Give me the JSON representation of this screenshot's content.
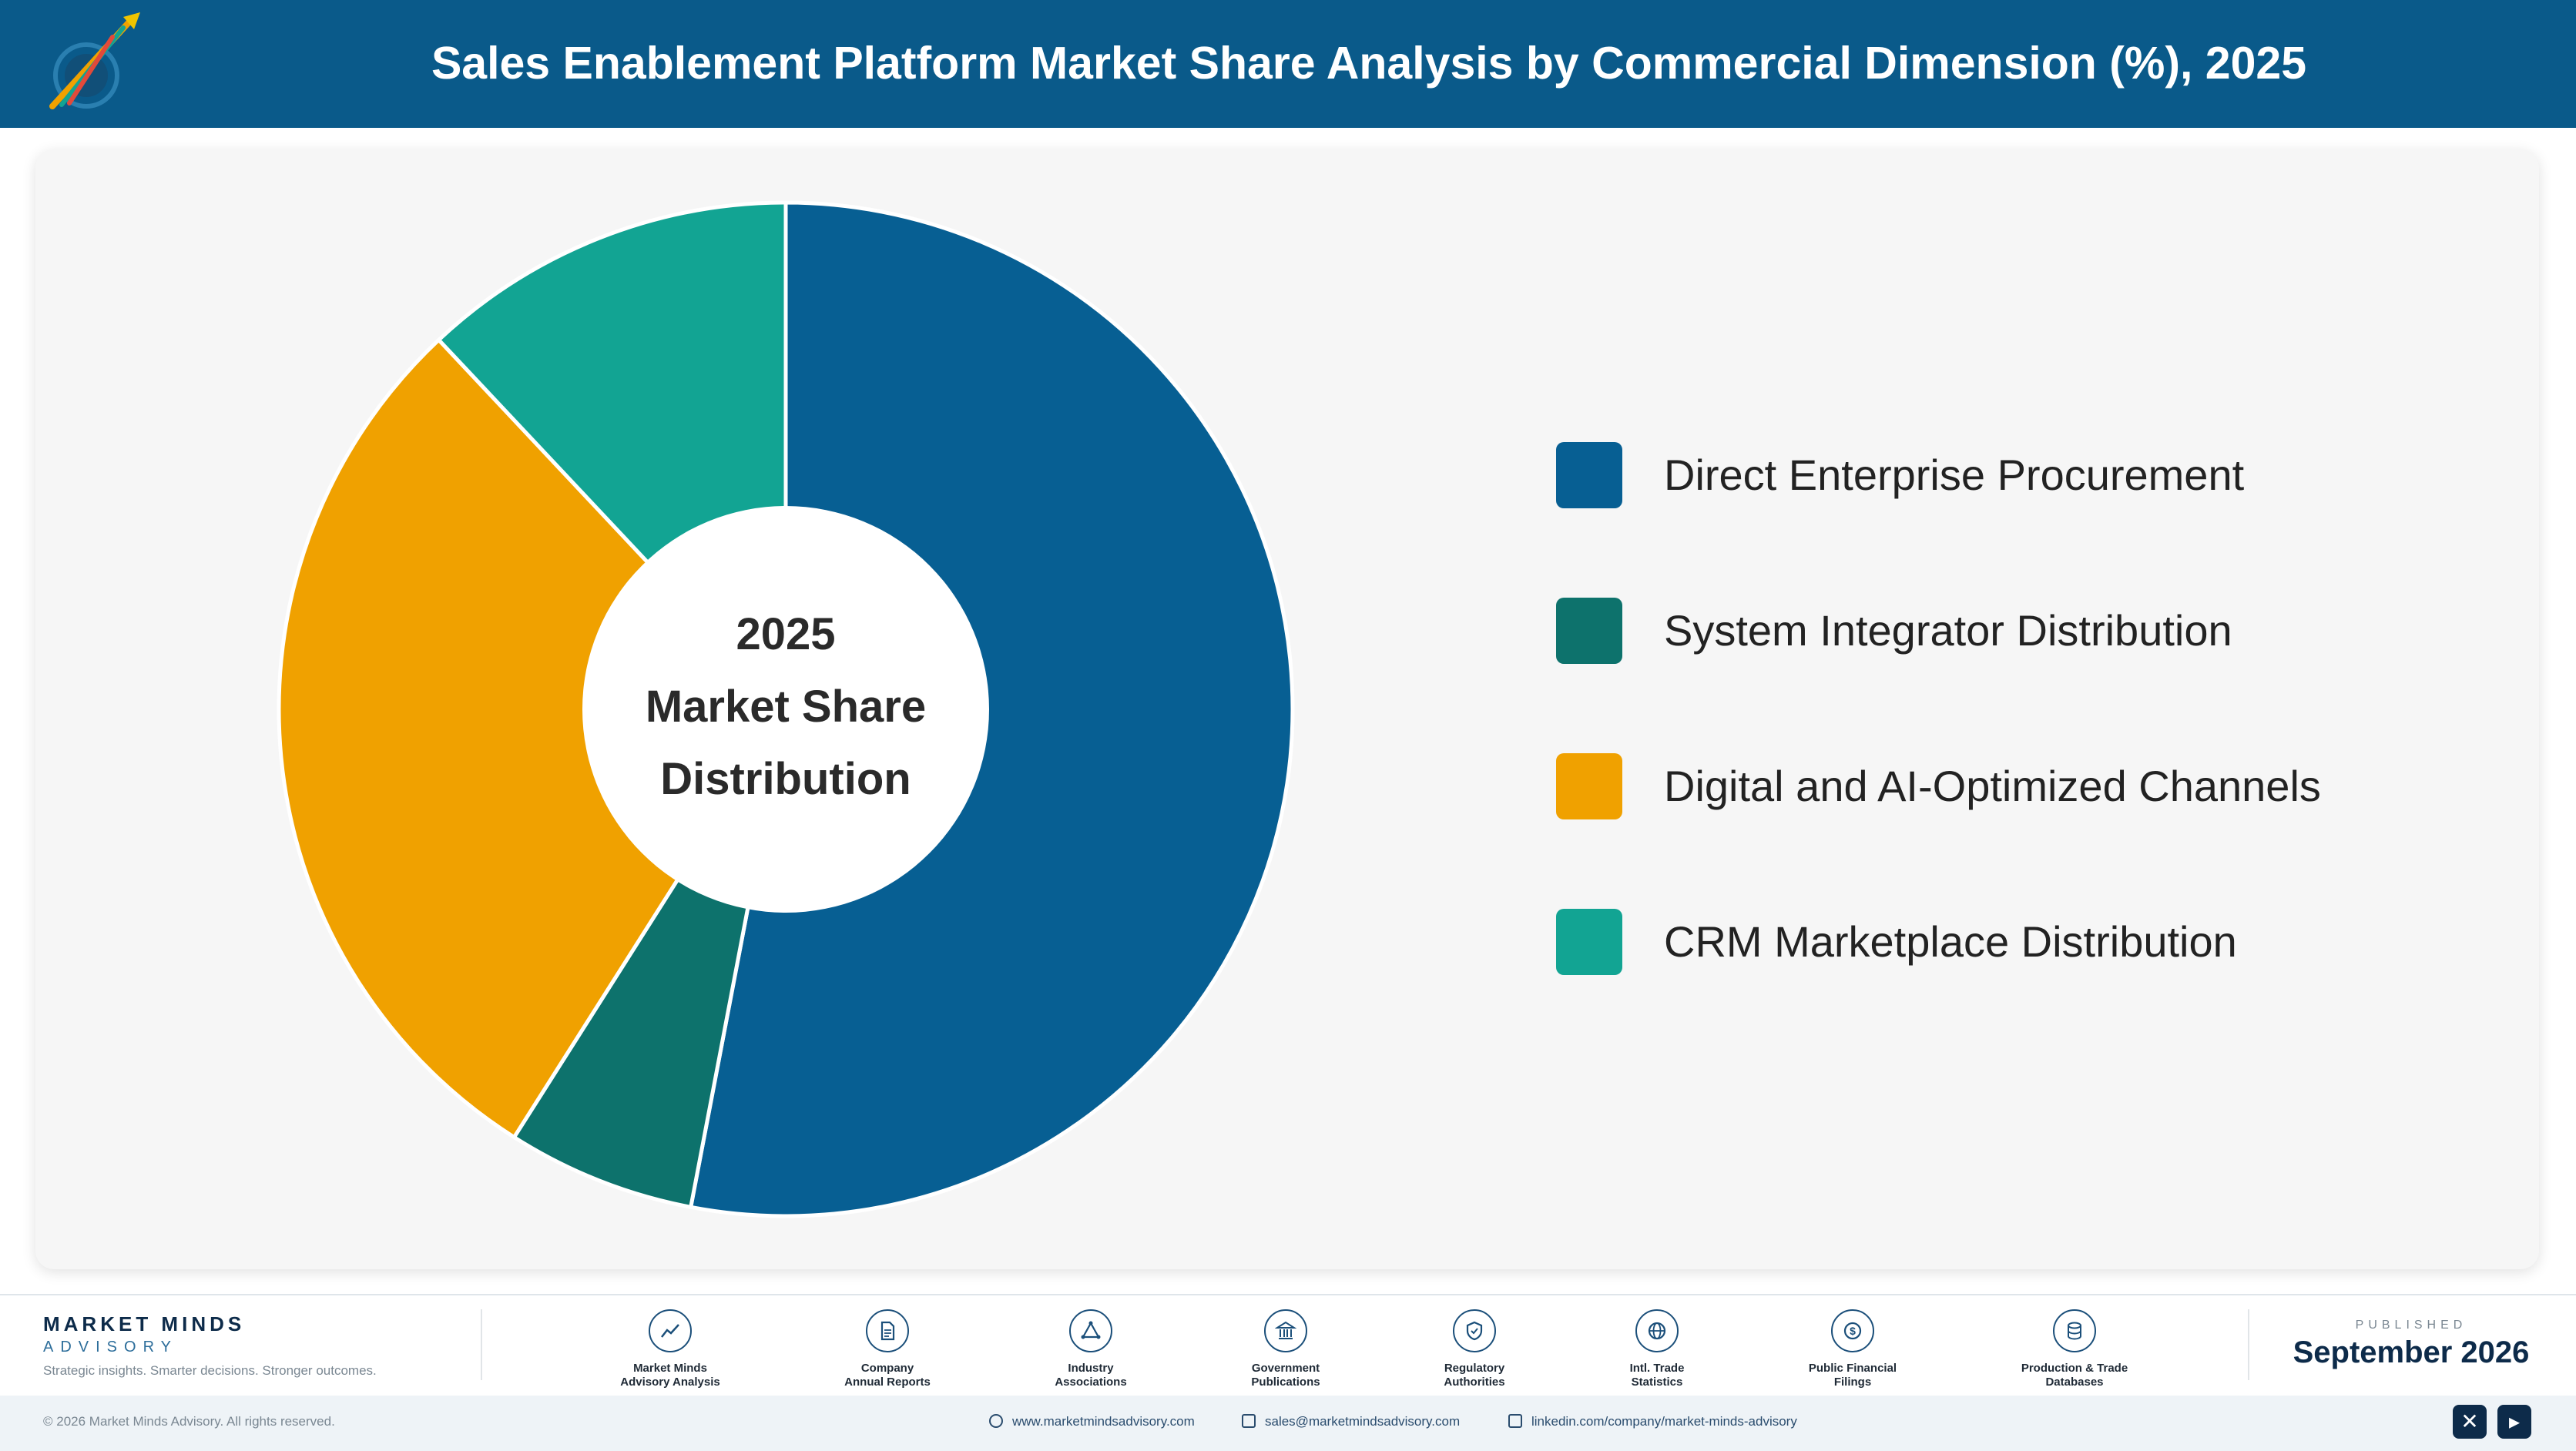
{
  "header": {
    "title": "Sales Enablement Platform Market Share Analysis by Commercial Dimension (%), 2025"
  },
  "chart_data": {
    "type": "pie",
    "donut": true,
    "title": "Sales Enablement Platform Market Share Analysis by Commercial Dimension (%), 2025",
    "center_text": [
      "2025",
      "Market Share",
      "Distribution"
    ],
    "categories": [
      "Direct Enterprise Procurement",
      "System Integrator Distribution",
      "Digital and AI-Optimized Channels",
      "CRM Marketplace Distribution"
    ],
    "values": [
      53.0,
      6.0,
      29.0,
      12.0
    ],
    "colors": [
      "#075f93",
      "#0d726c",
      "#f0a100",
      "#12a493"
    ],
    "legend_placement": "right"
  },
  "footer": {
    "brand_name": "MARKET MINDS",
    "brand_sub": "ADVISORY",
    "brand_tagline": "Strategic insights. Smarter decisions. Stronger outcomes.",
    "sources": [
      {
        "label": "Market Minds\nAdvisory Analysis",
        "icon": "chart-line-icon"
      },
      {
        "label": "Company\nAnnual Reports",
        "icon": "document-icon"
      },
      {
        "label": "Industry\nAssociations",
        "icon": "network-icon"
      },
      {
        "label": "Government\nPublications",
        "icon": "government-building-icon"
      },
      {
        "label": "Regulatory\nAuthorities",
        "icon": "shield-check-icon"
      },
      {
        "label": "Intl. Trade\nStatistics",
        "icon": "globe-icon"
      },
      {
        "label": "Public Financial\nFilings",
        "icon": "dollar-coin-icon"
      },
      {
        "label": "Production & Trade\nDatabases",
        "icon": "database-icon"
      }
    ],
    "published_label": "PUBLISHED",
    "published_date": "September 2026",
    "copyright": "© 2026 Market Minds Advisory. All rights reserved.",
    "website": "www.marketmindsadvisory.com",
    "email": "sales@marketmindsadvisory.com",
    "linkedin": "linkedin.com/company/market-minds-advisory"
  }
}
